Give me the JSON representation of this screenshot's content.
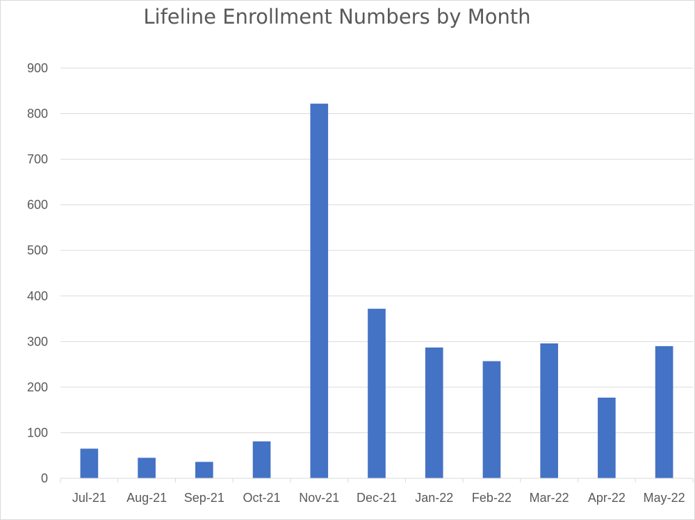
{
  "chart_data": {
    "type": "bar",
    "title": "Lifeline Enrollment Numbers by Month",
    "xlabel": "",
    "ylabel": "",
    "categories": [
      "Jul-21",
      "Aug-21",
      "Sep-21",
      "Oct-21",
      "Nov-21",
      "Dec-21",
      "Jan-22",
      "Feb-22",
      "Mar-22",
      "Apr-22",
      "May-22"
    ],
    "values": [
      65,
      45,
      36,
      81,
      822,
      372,
      287,
      257,
      296,
      177,
      290
    ],
    "ylim": [
      0,
      900
    ],
    "yticks": [
      "0",
      "100",
      "200",
      "300",
      "400",
      "500",
      "600",
      "700",
      "800",
      "900"
    ],
    "grid": true,
    "legend": "none",
    "bar_color": "#4472C4"
  }
}
